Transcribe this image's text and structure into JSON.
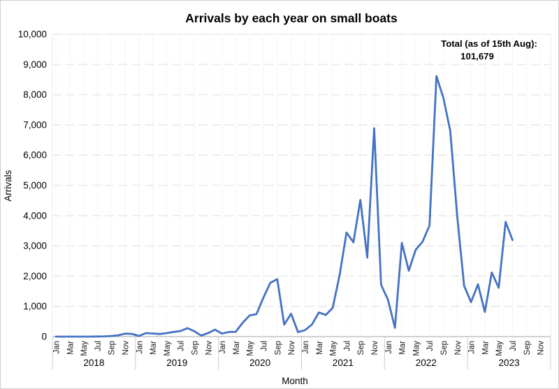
{
  "title": "Arrivals by each year on small boats",
  "annotation": {
    "line1": "Total (as of 15th Aug):",
    "line2": "101,679"
  },
  "chart_data": {
    "type": "line",
    "title": "Arrivals by each year on small boats",
    "xlabel": "Month",
    "ylabel": "Arrivals",
    "ylim": [
      0,
      10000
    ],
    "grid": "horizontal-dashed",
    "legend": "none",
    "y_ticks": [
      0,
      1000,
      2000,
      3000,
      4000,
      5000,
      6000,
      7000,
      8000,
      9000,
      10000
    ],
    "y_tick_labels": [
      "0",
      "1,000",
      "2,000",
      "3,000",
      "4,000",
      "5,000",
      "6,000",
      "7,000",
      "8,000",
      "9,000",
      "10,000"
    ],
    "month_tick_labels": [
      "Jan",
      "Mar",
      "May",
      "Jul",
      "Sep",
      "Nov"
    ],
    "years": [
      "2018",
      "2019",
      "2020",
      "2021",
      "2022",
      "2023"
    ],
    "series": [
      {
        "name": "Arrivals",
        "monthly_values_by_year": {
          "2018": [
            0,
            0,
            0,
            0,
            0,
            0,
            5,
            10,
            20,
            45,
            100,
            90
          ],
          "2019": [
            20,
            115,
            105,
            85,
            115,
            155,
            185,
            280,
            180,
            35,
            115,
            230
          ],
          "2020": [
            100,
            155,
            160,
            460,
            700,
            745,
            1290,
            1780,
            1900,
            400,
            755,
            150
          ],
          "2021": [
            215,
            400,
            800,
            715,
            950,
            2030,
            3440,
            3120,
            4520,
            2615,
            6890,
            1715
          ],
          "2022": [
            1215,
            290,
            3100,
            2180,
            2870,
            3140,
            3680,
            8615,
            7900,
            6800,
            3990,
            1680
          ],
          "2023": [
            1140,
            1730,
            815,
            2120,
            1615,
            3795,
            3195
          ]
        }
      }
    ],
    "colors": {
      "line": "#4472c4",
      "gridline": "#ececec",
      "minor_vertical_gridline": "#f6f6f6",
      "axis": "#c2c2c2",
      "year_separator": "#cccccc",
      "plot_frame": "#e9e9e9",
      "text": "#000000"
    }
  }
}
